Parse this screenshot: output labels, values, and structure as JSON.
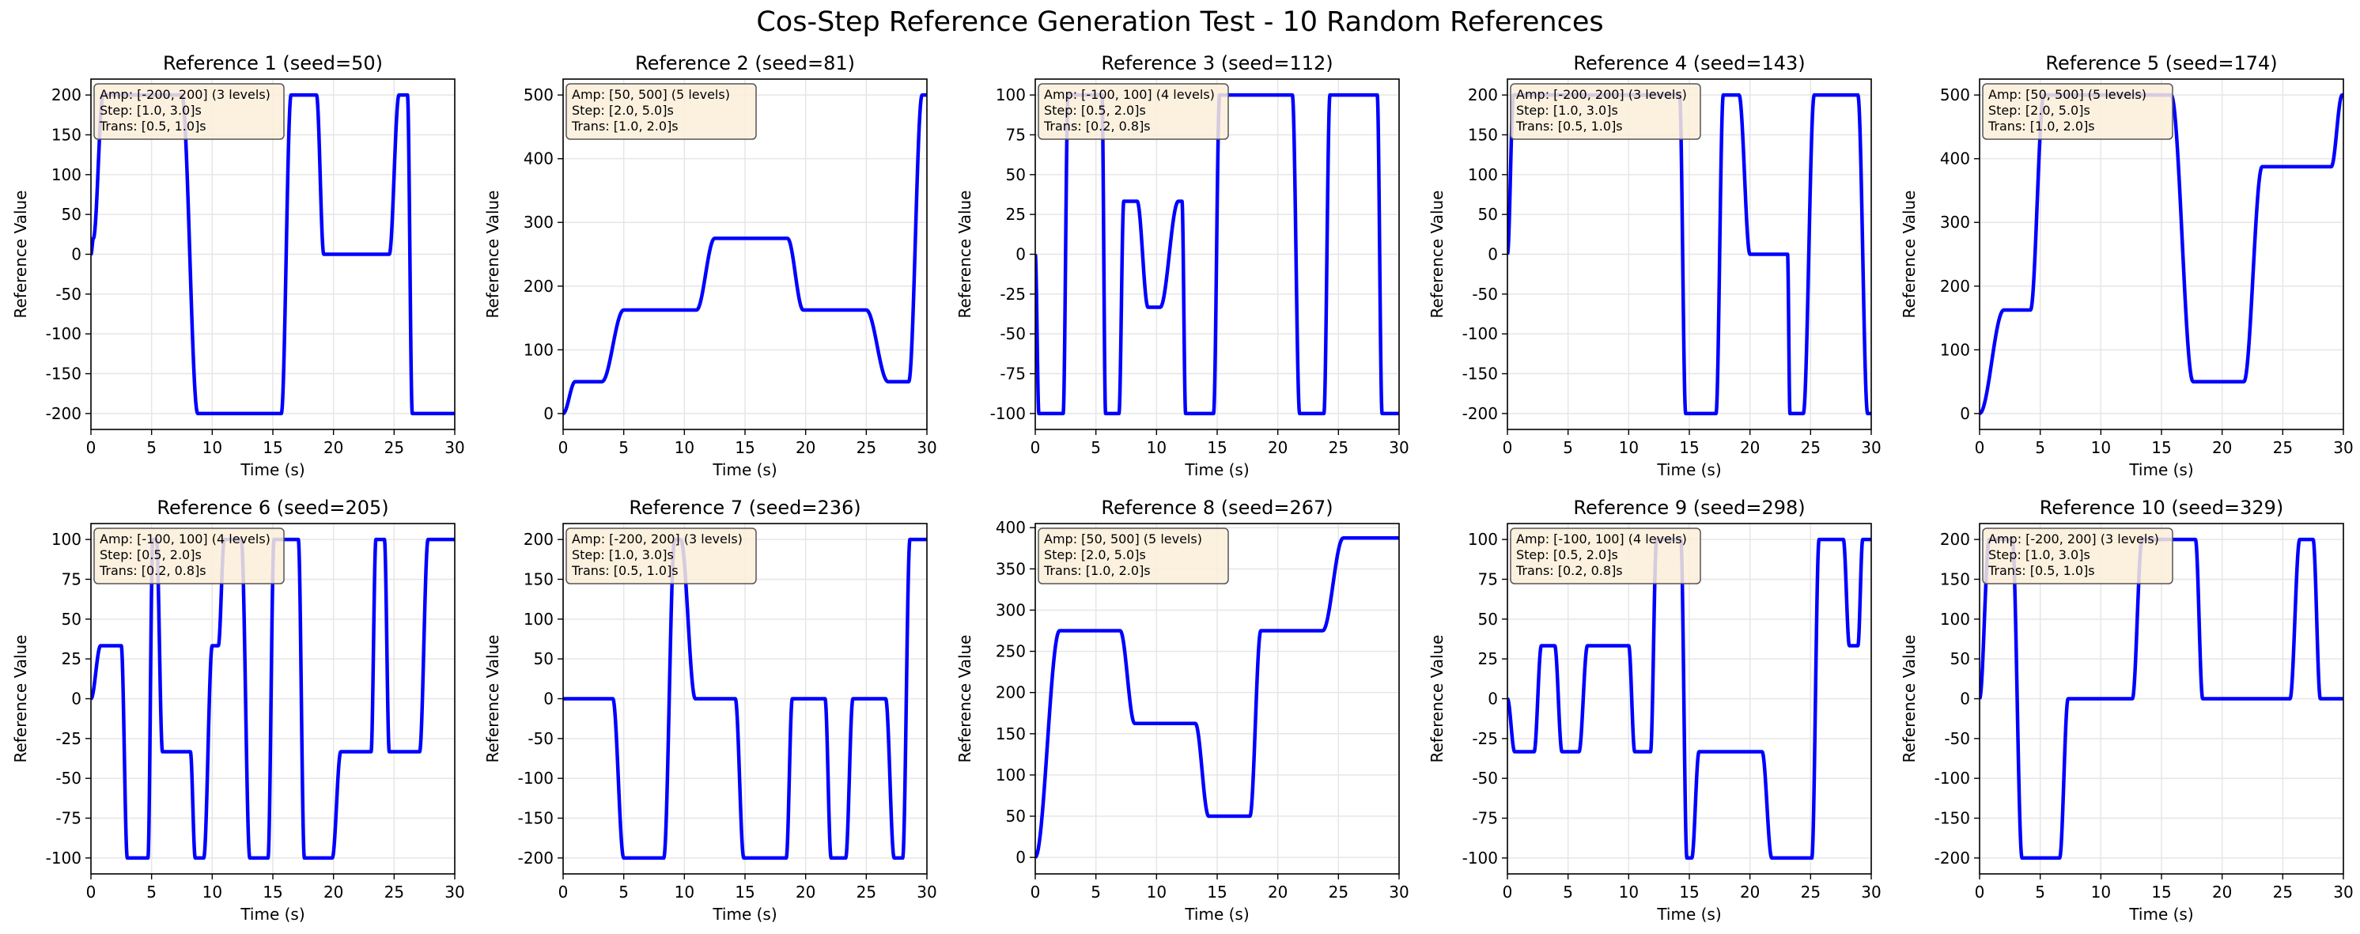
{
  "figure": {
    "title": "Cos-Step Reference Generation Test - 10 Random References"
  },
  "colors": {
    "line": "#0000ff",
    "grid": "#e6e6e6",
    "axes": "#000000",
    "infobox_fill": "#fbefd9",
    "infobox_edge": "#555555"
  },
  "chart_data": [
    {
      "type": "line",
      "title": "Reference 1 (seed=50)",
      "xlabel": "Time (s)",
      "ylabel": "Reference Value",
      "xlim": [
        0,
        30
      ],
      "ylim": [
        -220,
        220
      ],
      "xticks": [
        0,
        5,
        10,
        15,
        20,
        25,
        30
      ],
      "yticks": [
        -200,
        -150,
        -100,
        -50,
        0,
        50,
        100,
        150,
        200
      ],
      "info": [
        "Amp: [-200, 200] (3 levels)",
        "Step: [1.0, 3.0]s",
        "Trans: [0.5, 1.0]s"
      ],
      "x": [
        0,
        0.2,
        1.0,
        1.2,
        7.5,
        8.8,
        15.7,
        16.5,
        18.6,
        19.2,
        24.6,
        25.4,
        26.1,
        26.5,
        30
      ],
      "y": [
        0,
        20,
        200,
        200,
        200,
        -200,
        -200,
        200,
        200,
        0,
        0,
        200,
        200,
        -200,
        -200
      ]
    },
    {
      "type": "line",
      "title": "Reference 2 (seed=81)",
      "xlabel": "Time (s)",
      "ylabel": "Reference Value",
      "xlim": [
        0,
        30
      ],
      "ylim": [
        -25,
        525
      ],
      "xticks": [
        0,
        5,
        10,
        15,
        20,
        25,
        30
      ],
      "yticks": [
        0,
        100,
        200,
        300,
        400,
        500
      ],
      "info": [
        "Amp: [50, 500] (5 levels)",
        "Step: [2.0, 5.0]s",
        "Trans: [1.0, 2.0]s"
      ],
      "x": [
        0,
        1.0,
        3.2,
        5.0,
        11.0,
        12.5,
        18.5,
        19.8,
        25.0,
        26.8,
        28.5,
        29.6,
        30
      ],
      "y": [
        0,
        50,
        50,
        162.5,
        162.5,
        275,
        275,
        162.5,
        162.5,
        50,
        50,
        500,
        500
      ]
    },
    {
      "type": "line",
      "title": "Reference 3 (seed=112)",
      "xlabel": "Time (s)",
      "ylabel": "Reference Value",
      "xlim": [
        0,
        30
      ],
      "ylim": [
        -110,
        110
      ],
      "xticks": [
        0,
        5,
        10,
        15,
        20,
        25,
        30
      ],
      "yticks": [
        -100,
        -75,
        -50,
        -25,
        0,
        25,
        50,
        75,
        100
      ],
      "info": [
        "Amp: [-100, 100] (4 levels)",
        "Step: [0.5, 2.0]s",
        "Trans: [0.2, 0.8]s"
      ],
      "x": [
        0,
        0.3,
        2.3,
        2.7,
        5.5,
        5.8,
        6.9,
        7.3,
        8.4,
        9.3,
        10.1,
        10.3,
        11.8,
        12.1,
        12.4,
        12.7,
        14.7,
        15.2,
        21.2,
        21.8,
        23.8,
        24.3,
        28.2,
        28.6,
        30
      ],
      "y": [
        0,
        -100,
        -100,
        100,
        100,
        -100,
        -100,
        33.3,
        33.3,
        -33.3,
        -33.3,
        -33.3,
        33.3,
        33.3,
        -100,
        -100,
        -100,
        100,
        100,
        -100,
        -100,
        100,
        100,
        -100,
        -100
      ]
    },
    {
      "type": "line",
      "title": "Reference 4 (seed=143)",
      "xlabel": "Time (s)",
      "ylabel": "Reference Value",
      "xlim": [
        0,
        30
      ],
      "ylim": [
        -220,
        220
      ],
      "xticks": [
        0,
        5,
        10,
        15,
        20,
        25,
        30
      ],
      "yticks": [
        -200,
        -150,
        -100,
        -50,
        0,
        50,
        100,
        150,
        200
      ],
      "info": [
        "Amp: [-200, 200] (3 levels)",
        "Step: [1.0, 3.0]s",
        "Trans: [0.5, 1.0]s"
      ],
      "x": [
        0,
        0.5,
        14.2,
        14.7,
        17.2,
        17.8,
        19.1,
        20.0,
        23.1,
        23.3,
        24.4,
        25.3,
        28.9,
        29.7,
        30
      ],
      "y": [
        0,
        200,
        200,
        -200,
        -200,
        200,
        200,
        0,
        0,
        -200,
        -200,
        200,
        200,
        -200,
        -200
      ]
    },
    {
      "type": "line",
      "title": "Reference 5 (seed=174)",
      "xlabel": "Time (s)",
      "ylabel": "Reference Value",
      "xlim": [
        0,
        30
      ],
      "ylim": [
        -25,
        525
      ],
      "xticks": [
        0,
        5,
        10,
        15,
        20,
        25,
        30
      ],
      "yticks": [
        0,
        100,
        200,
        300,
        400,
        500
      ],
      "info": [
        "Amp: [50, 500] (5 levels)",
        "Step: [2.0, 5.0]s",
        "Trans: [1.0, 2.0]s"
      ],
      "x": [
        0,
        2.0,
        4.2,
        5.3,
        15.8,
        17.6,
        21.8,
        23.3,
        29.0,
        29.9,
        30
      ],
      "y": [
        0,
        162.5,
        162.5,
        500,
        500,
        50,
        50,
        387.5,
        387.5,
        500,
        500
      ]
    },
    {
      "type": "line",
      "title": "Reference 6 (seed=205)",
      "xlabel": "Time (s)",
      "ylabel": "Reference Value",
      "xlim": [
        0,
        30
      ],
      "ylim": [
        -110,
        110
      ],
      "xticks": [
        0,
        5,
        10,
        15,
        20,
        25,
        30
      ],
      "yticks": [
        -100,
        -75,
        -50,
        -25,
        0,
        25,
        50,
        75,
        100
      ],
      "info": [
        "Amp: [-100, 100] (4 levels)",
        "Step: [0.5, 2.0]s",
        "Trans: [0.2, 0.8]s"
      ],
      "x": [
        0,
        0.8,
        2.5,
        3.0,
        4.7,
        5.1,
        5.4,
        5.9,
        8.2,
        8.6,
        9.3,
        10.0,
        10.5,
        11.0,
        12.4,
        13.1,
        14.6,
        15.1,
        17.1,
        17.6,
        19.9,
        20.6,
        23.1,
        23.5,
        24.2,
        24.6,
        27.1,
        27.8,
        30
      ],
      "y": [
        0,
        33.3,
        33.3,
        -100,
        -100,
        100,
        100,
        -33.3,
        -33.3,
        -100,
        -100,
        33.3,
        33.3,
        100,
        100,
        -100,
        -100,
        100,
        100,
        -100,
        -100,
        -33.3,
        -33.3,
        100,
        100,
        -33.3,
        -33.3,
        100,
        100
      ]
    },
    {
      "type": "line",
      "title": "Reference 7 (seed=236)",
      "xlabel": "Time (s)",
      "ylabel": "Reference Value",
      "xlim": [
        0,
        30
      ],
      "ylim": [
        -220,
        220
      ],
      "xticks": [
        0,
        5,
        10,
        15,
        20,
        25,
        30
      ],
      "yticks": [
        -200,
        -150,
        -100,
        -50,
        0,
        50,
        100,
        150,
        200
      ],
      "info": [
        "Amp: [-200, 200] (3 levels)",
        "Step: [1.0, 3.0]s",
        "Trans: [0.5, 1.0]s"
      ],
      "x": [
        0,
        4.1,
        5.0,
        8.3,
        9.2,
        9.7,
        10.9,
        14.2,
        14.9,
        18.4,
        18.9,
        21.6,
        22.1,
        23.3,
        23.9,
        26.6,
        27.3,
        28.0,
        28.6,
        30
      ],
      "y": [
        0,
        0,
        -200,
        -200,
        200,
        200,
        0,
        0,
        -200,
        -200,
        0,
        0,
        -200,
        -200,
        0,
        0,
        -200,
        -200,
        200,
        200
      ]
    },
    {
      "type": "line",
      "title": "Reference 8 (seed=267)",
      "xlabel": "Time (s)",
      "ylabel": "Reference Value",
      "xlim": [
        0,
        30
      ],
      "ylim": [
        -20,
        405
      ],
      "xticks": [
        0,
        5,
        10,
        15,
        20,
        25,
        30
      ],
      "yticks": [
        0,
        50,
        100,
        150,
        200,
        250,
        300,
        350,
        400
      ],
      "info": [
        "Amp: [50, 500] (5 levels)",
        "Step: [2.0, 5.0]s",
        "Trans: [1.0, 2.0]s"
      ],
      "x": [
        0,
        2.0,
        7.0,
        8.2,
        13.2,
        14.3,
        17.7,
        18.6,
        23.7,
        25.4,
        30
      ],
      "y": [
        0,
        275,
        275,
        162.5,
        162.5,
        50,
        50,
        275,
        275,
        387.5,
        387.5
      ]
    },
    {
      "type": "line",
      "title": "Reference 9 (seed=298)",
      "xlabel": "Time (s)",
      "ylabel": "Reference Value",
      "xlim": [
        0,
        30
      ],
      "ylim": [
        -110,
        110
      ],
      "xticks": [
        0,
        5,
        10,
        15,
        20,
        25,
        30
      ],
      "yticks": [
        -100,
        -75,
        -50,
        -25,
        0,
        25,
        50,
        75,
        100
      ],
      "info": [
        "Amp: [-100, 100] (4 levels)",
        "Step: [0.5, 2.0]s",
        "Trans: [0.2, 0.8]s"
      ],
      "x": [
        0,
        0.6,
        2.2,
        2.8,
        3.9,
        4.5,
        5.9,
        6.6,
        10.0,
        10.5,
        11.8,
        12.3,
        14.3,
        14.8,
        15.2,
        15.8,
        21.0,
        21.8,
        25.1,
        25.7,
        27.7,
        28.2,
        28.9,
        29.3,
        30
      ],
      "y": [
        0,
        -33.3,
        -33.3,
        33.3,
        33.3,
        -33.3,
        -33.3,
        33.3,
        33.3,
        -33.3,
        -33.3,
        100,
        100,
        -100,
        -100,
        -33.3,
        -33.3,
        -100,
        -100,
        100,
        100,
        33.3,
        33.3,
        100,
        100
      ]
    },
    {
      "type": "line",
      "title": "Reference 10 (seed=329)",
      "xlabel": "Time (s)",
      "ylabel": "Reference Value",
      "xlim": [
        0,
        30
      ],
      "ylim": [
        -220,
        220
      ],
      "xticks": [
        0,
        5,
        10,
        15,
        20,
        25,
        30
      ],
      "yticks": [
        -200,
        -150,
        -100,
        -50,
        0,
        50,
        100,
        150,
        200
      ],
      "info": [
        "Amp: [-200, 200] (3 levels)",
        "Step: [1.0, 3.0]s",
        "Trans: [0.5, 1.0]s"
      ],
      "x": [
        0,
        0.8,
        2.7,
        3.5,
        6.6,
        7.3,
        12.6,
        13.4,
        17.8,
        18.4,
        25.6,
        26.4,
        27.5,
        28.1,
        30
      ],
      "y": [
        0,
        200,
        200,
        -200,
        -200,
        0,
        0,
        200,
        200,
        0,
        0,
        200,
        200,
        0,
        0
      ]
    }
  ]
}
